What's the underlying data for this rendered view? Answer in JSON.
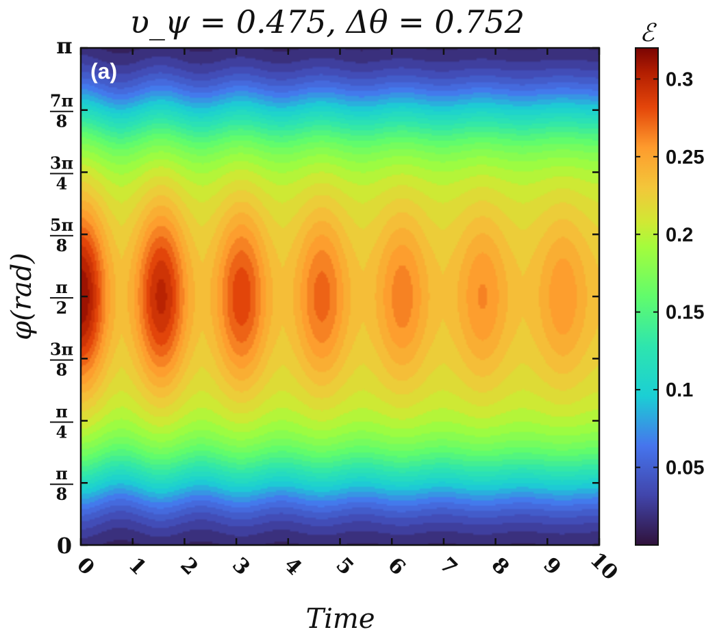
{
  "chart_data": {
    "type": "heatmap",
    "title": "υ_ψ = 0.475, Δθ = 0.752",
    "panel_label": "(a)",
    "xlabel": "Time",
    "ylabel": "φ(rad)",
    "xlim": [
      0,
      10
    ],
    "ylim": [
      0,
      3.14159
    ],
    "x_ticks": [
      "0",
      "1",
      "2",
      "3",
      "4",
      "5",
      "6",
      "7",
      "8",
      "9",
      "10"
    ],
    "y_ticks": [
      {
        "value": 0,
        "num": "0",
        "den": ""
      },
      {
        "value": 0.3927,
        "num": "π",
        "den": "8"
      },
      {
        "value": 0.7854,
        "num": "π",
        "den": "4"
      },
      {
        "value": 1.1781,
        "num": "3π",
        "den": "8"
      },
      {
        "value": 1.5708,
        "num": "π",
        "den": "2"
      },
      {
        "value": 1.9635,
        "num": "5π",
        "den": "8"
      },
      {
        "value": 2.3562,
        "num": "3π",
        "den": "4"
      },
      {
        "value": 2.7489,
        "num": "7π",
        "den": "8"
      },
      {
        "value": 3.14159,
        "num": "π",
        "den": ""
      }
    ],
    "colorbar": {
      "label": "ℰ",
      "range": [
        0,
        0.32
      ],
      "ticks": [
        "0.05",
        "0.1",
        "0.15",
        "0.2",
        "0.25",
        "0.3"
      ],
      "tick_values": [
        0.05,
        0.1,
        0.15,
        0.2,
        0.25,
        0.3
      ],
      "colormap": "turbo"
    },
    "field": {
      "peak_times": [
        0,
        1.55,
        3.1,
        4.65,
        6.2,
        7.75,
        9.3
      ],
      "peak_values": [
        0.32,
        0.305,
        0.29,
        0.278,
        0.27,
        0.265,
        0.262
      ],
      "trough_value": 0.235,
      "band_center": 1.5708,
      "band_low_edge": 0.4,
      "band_high_edge": 2.74
    }
  }
}
